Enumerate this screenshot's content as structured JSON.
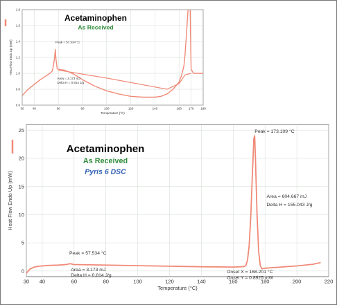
{
  "chart_data": [
    {
      "type": "line",
      "title": "Acetaminophen",
      "subtitle": "As Received",
      "xlabel": "Temperature (°C)",
      "ylabel": "Heat Flow Endo Up (mW)",
      "xlim": [
        30,
        180
      ],
      "ylim": [
        0.6,
        1.8
      ],
      "xticks": [
        "30",
        "40",
        "60",
        "80",
        "100",
        "120",
        "140",
        "160",
        "170",
        "180"
      ],
      "yticks": [
        "0.6",
        "0.8",
        "1.0",
        "1.2",
        "1.4",
        "1.6",
        "1.8"
      ],
      "grid": true,
      "series": [
        {
          "color": "#f08a78",
          "x": [
            30,
            35,
            40,
            45,
            50,
            53,
            55,
            56,
            57,
            57.5,
            58,
            59,
            60,
            65,
            70,
            75,
            80,
            90,
            100,
            110,
            120,
            130,
            140,
            145,
            150,
            155,
            160,
            162,
            164,
            165,
            166,
            167,
            168,
            169,
            170,
            172,
            175,
            180
          ],
          "y": [
            0.72,
            0.8,
            0.86,
            0.92,
            0.97,
            1.0,
            1.03,
            1.1,
            1.22,
            1.3,
            1.18,
            1.06,
            1.05,
            1.04,
            1.01,
            0.97,
            0.92,
            0.84,
            0.78,
            0.74,
            0.71,
            0.7,
            0.7,
            0.71,
            0.74,
            0.8,
            0.89,
            0.97,
            1.09,
            1.24,
            1.45,
            1.7,
            1.9,
            2.0,
            1.05,
            1.0,
            1.0,
            1.0
          ]
        }
      ],
      "baseline": {
        "x": [
          60,
          100,
          150,
          160,
          165,
          170
        ],
        "y": [
          1.04,
          0.94,
          0.8,
          0.87,
          0.98,
          1.0
        ]
      },
      "annotations": [
        {
          "text": "Peak = 57.534 °C",
          "x": 57.5,
          "y": 1.38
        },
        {
          "text": "Area = 3.173 mJ",
          "x": 59,
          "y": 0.92
        },
        {
          "text": "Delta H = 0.814 J/g",
          "x": 59,
          "y": 0.87
        }
      ]
    },
    {
      "type": "line",
      "title": "Acetaminophen",
      "subtitle": "As Received",
      "subtitle2": "Pyris 6 DSC",
      "xlabel": "Temperature (°C)",
      "ylabel": "Heat Flow Endo Up (mW)",
      "xlim": [
        30,
        220
      ],
      "ylim": [
        -1,
        26
      ],
      "xticks": [
        "30",
        "40",
        "60",
        "80",
        "100",
        "120",
        "140",
        "160",
        "180",
        "200",
        "220"
      ],
      "yticks": [
        "0",
        "5",
        "10",
        "15",
        "20",
        "25"
      ],
      "grid": true,
      "series": [
        {
          "color": "#f08a78",
          "x": [
            30,
            32,
            35,
            38,
            40,
            45,
            50,
            55,
            57.5,
            60,
            70,
            80,
            100,
            120,
            140,
            160,
            165,
            167,
            168,
            169,
            170,
            171,
            172,
            173,
            173.5,
            174,
            175,
            176,
            177,
            178,
            180,
            190,
            200,
            210,
            215
          ],
          "y": [
            -0.4,
            0.3,
            0.7,
            0.85,
            0.9,
            1.0,
            1.05,
            1.15,
            1.3,
            1.15,
            1.1,
            1.05,
            0.95,
            0.85,
            0.75,
            0.7,
            0.75,
            0.8,
            1.0,
            2.0,
            4.5,
            9.5,
            17.0,
            23.5,
            24.0,
            20.0,
            10.0,
            3.5,
            1.0,
            0.4,
            0.5,
            0.7,
            0.9,
            1.2,
            1.5
          ]
        }
      ],
      "annotations": [
        {
          "text": "Peak = 173.109 °C",
          "x": 173.5,
          "y": 24.5
        },
        {
          "text": "Area = 604.667 mJ",
          "x": 181,
          "y": 13.0
        },
        {
          "text": "Delta H = 155.043 J/g",
          "x": 181,
          "y": 11.5
        },
        {
          "text": "Peak = 57.534 °C",
          "x": 57,
          "y": 2.9
        },
        {
          "text": "Area = 3.173 mJ",
          "x": 58,
          "y": 0.0
        },
        {
          "text": "Delta H = 0.814 J/g",
          "x": 58,
          "y": -1.0
        },
        {
          "text": "Onset X = 168.201 °C",
          "x": 156,
          "y": -0.4
        },
        {
          "text": "Onset Y = 0.8925 mW",
          "x": 156,
          "y": -1.4
        }
      ]
    }
  ]
}
